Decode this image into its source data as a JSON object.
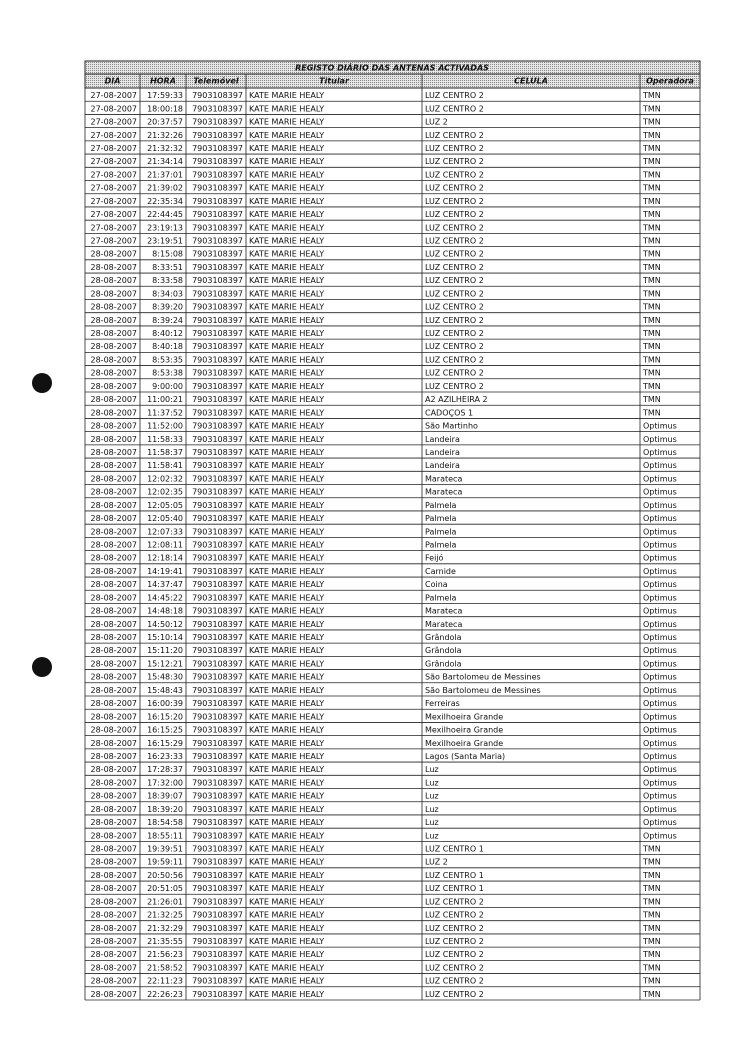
{
  "table": {
    "title": "REGISTO DIÁRIO DAS ANTENAS ACTIVADAS",
    "header": [
      "DIA",
      "HORA",
      "Telemóvel",
      "Titular",
      "CELULA",
      "Operadora"
    ],
    "rows": [
      [
        "27-08-2007",
        "17:59:33",
        "7903108397",
        "KATE MARIE HEALY",
        "LUZ CENTRO 2",
        "TMN"
      ],
      [
        "27-08-2007",
        "18:00:18",
        "7903108397",
        "KATE MARIE HEALY",
        "LUZ CENTRO 2",
        "TMN"
      ],
      [
        "27-08-2007",
        "20:37:57",
        "7903108397",
        "KATE MARIE HEALY",
        "LUZ 2",
        "TMN"
      ],
      [
        "27-08-2007",
        "21:32:26",
        "7903108397",
        "KATE MARIE HEALY",
        "LUZ CENTRO 2",
        "TMN"
      ],
      [
        "27-08-2007",
        "21:32:32",
        "7903108397",
        "KATE MARIE HEALY",
        "LUZ CENTRO 2",
        "TMN"
      ],
      [
        "27-08-2007",
        "21:34:14",
        "7903108397",
        "KATE MARIE HEALY",
        "LUZ CENTRO 2",
        "TMN"
      ],
      [
        "27-08-2007",
        "21:37:01",
        "7903108397",
        "KATE MARIE HEALY",
        "LUZ CENTRO 2",
        "TMN"
      ],
      [
        "27-08-2007",
        "21:39:02",
        "7903108397",
        "KATE MARIE HEALY",
        "LUZ CENTRO 2",
        "TMN"
      ],
      [
        "27-08-2007",
        "22:35:34",
        "7903108397",
        "KATE MARIE HEALY",
        "LUZ CENTRO 2",
        "TMN"
      ],
      [
        "27-08-2007",
        "22:44:45",
        "7903108397",
        "KATE MARIE HEALY",
        "LUZ CENTRO 2",
        "TMN"
      ],
      [
        "27-08-2007",
        "23:19:13",
        "7903108397",
        "KATE MARIE HEALY",
        "LUZ CENTRO 2",
        "TMN"
      ],
      [
        "27-08-2007",
        "23:19:51",
        "7903108397",
        "KATE MARIE HEALY",
        "LUZ CENTRO 2",
        "TMN"
      ],
      [
        "28-08-2007",
        "8:15:08",
        "7903108397",
        "KATE MARIE HEALY",
        "LUZ CENTRO 2",
        "TMN"
      ],
      [
        "28-08-2007",
        "8:33:51",
        "7903108397",
        "KATE MARIE HEALY",
        "LUZ CENTRO 2",
        "TMN"
      ],
      [
        "28-08-2007",
        "8:33:58",
        "7903108397",
        "KATE MARIE HEALY",
        "LUZ CENTRO 2",
        "TMN"
      ],
      [
        "28-08-2007",
        "8:34:03",
        "7903108397",
        "KATE MARIE HEALY",
        "LUZ CENTRO 2",
        "TMN"
      ],
      [
        "28-08-2007",
        "8:39:20",
        "7903108397",
        "KATE MARIE HEALY",
        "LUZ CENTRO 2",
        "TMN"
      ],
      [
        "28-08-2007",
        "8:39:24",
        "7903108397",
        "KATE MARIE HEALY",
        "LUZ CENTRO 2",
        "TMN"
      ],
      [
        "28-08-2007",
        "8:40:12",
        "7903108397",
        "KATE MARIE HEALY",
        "LUZ CENTRO 2",
        "TMN"
      ],
      [
        "28-08-2007",
        "8:40:18",
        "7903108397",
        "KATE MARIE HEALY",
        "LUZ CENTRO 2",
        "TMN"
      ],
      [
        "28-08-2007",
        "8:53:35",
        "7903108397",
        "KATE MARIE HEALY",
        "LUZ CENTRO 2",
        "TMN"
      ],
      [
        "28-08-2007",
        "8:53:38",
        "7903108397",
        "KATE MARIE HEALY",
        "LUZ CENTRO 2",
        "TMN"
      ],
      [
        "28-08-2007",
        "9:00:00",
        "7903108397",
        "KATE MARIE HEALY",
        "LUZ CENTRO 2",
        "TMN"
      ],
      [
        "28-08-2007",
        "11:00:21",
        "7903108397",
        "KATE MARIE HEALY",
        "A2 AZILHEIRA 2",
        "TMN"
      ],
      [
        "28-08-2007",
        "11:37:52",
        "7903108397",
        "KATE MARIE HEALY",
        "CADOÇOS 1",
        "TMN"
      ],
      [
        "28-08-2007",
        "11:52:00",
        "7903108397",
        "KATE MARIE HEALY",
        "São Martinho",
        "Optimus"
      ],
      [
        "28-08-2007",
        "11:58:33",
        "7903108397",
        "KATE MARIE HEALY",
        "Landeira",
        "Optimus"
      ],
      [
        "28-08-2007",
        "11:58:37",
        "7903108397",
        "KATE MARIE HEALY",
        "Landeira",
        "Optimus"
      ],
      [
        "28-08-2007",
        "11:58:41",
        "7903108397",
        "KATE MARIE HEALY",
        "Landeira",
        "Optimus"
      ],
      [
        "28-08-2007",
        "12:02:32",
        "7903108397",
        "KATE MARIE HEALY",
        "Marateca",
        "Optimus"
      ],
      [
        "28-08-2007",
        "12:02:35",
        "7903108397",
        "KATE MARIE HEALY",
        "Marateca",
        "Optimus"
      ],
      [
        "28-08-2007",
        "12:05:05",
        "7903108397",
        "KATE MARIE HEALY",
        "Palmela",
        "Optimus"
      ],
      [
        "28-08-2007",
        "12:05:40",
        "7903108397",
        "KATE MARIE HEALY",
        "Palmela",
        "Optimus"
      ],
      [
        "28-08-2007",
        "12:07:33",
        "7903108397",
        "KATE MARIE HEALY",
        "Palmela",
        "Optimus"
      ],
      [
        "28-08-2007",
        "12:08:11",
        "7903108397",
        "KATE MARIE HEALY",
        "Palmela",
        "Optimus"
      ],
      [
        "28-08-2007",
        "12:18:14",
        "7903108397",
        "KATE MARIE HEALY",
        "Feijó",
        "Optimus"
      ],
      [
        "28-08-2007",
        "14:19:41",
        "7903108397",
        "KATE MARIE HEALY",
        "Carnide",
        "Optimus"
      ],
      [
        "28-08-2007",
        "14:37:47",
        "7903108397",
        "KATE MARIE HEALY",
        "Coina",
        "Optimus"
      ],
      [
        "28-08-2007",
        "14:45:22",
        "7903108397",
        "KATE MARIE HEALY",
        "Palmela",
        "Optimus"
      ],
      [
        "28-08-2007",
        "14:48:18",
        "7903108397",
        "KATE MARIE HEALY",
        "Marateca",
        "Optimus"
      ],
      [
        "28-08-2007",
        "14:50:12",
        "7903108397",
        "KATE MARIE HEALY",
        "Marateca",
        "Optimus"
      ],
      [
        "28-08-2007",
        "15:10:14",
        "7903108397",
        "KATE MARIE HEALY",
        "Grândola",
        "Optimus"
      ],
      [
        "28-08-2007",
        "15:11:20",
        "7903108397",
        "KATE MARIE HEALY",
        "Grândola",
        "Optimus"
      ],
      [
        "28-08-2007",
        "15:12:21",
        "7903108397",
        "KATE MARIE HEALY",
        "Grândola",
        "Optimus"
      ],
      [
        "28-08-2007",
        "15:48:30",
        "7903108397",
        "KATE MARIE HEALY",
        "São Bartolomeu de Messines",
        "Optimus"
      ],
      [
        "28-08-2007",
        "15:48:43",
        "7903108397",
        "KATE MARIE HEALY",
        "São Bartolomeu de Messines",
        "Optimus"
      ],
      [
        "28-08-2007",
        "16:00:39",
        "7903108397",
        "KATE MARIE HEALY",
        "Ferreiras",
        "Optimus"
      ],
      [
        "28-08-2007",
        "16:15:20",
        "7903108397",
        "KATE MARIE HEALY",
        "Mexilhoeira Grande",
        "Optimus"
      ],
      [
        "28-08-2007",
        "16:15:25",
        "7903108397",
        "KATE MARIE HEALY",
        "Mexilhoeira Grande",
        "Optimus"
      ],
      [
        "28-08-2007",
        "16:15:29",
        "7903108397",
        "KATE MARIE HEALY",
        "Mexilhoeira Grande",
        "Optimus"
      ],
      [
        "28-08-2007",
        "16:23:33",
        "7903108397",
        "KATE MARIE HEALY",
        "Lagos (Santa Maria)",
        "Optimus"
      ],
      [
        "28-08-2007",
        "17:28:37",
        "7903108397",
        "KATE MARIE HEALY",
        "Luz",
        "Optimus"
      ],
      [
        "28-08-2007",
        "17:32:00",
        "7903108397",
        "KATE MARIE HEALY",
        "Luz",
        "Optimus"
      ],
      [
        "28-08-2007",
        "18:39:07",
        "7903108397",
        "KATE MARIE HEALY",
        "Luz",
        "Optimus"
      ],
      [
        "28-08-2007",
        "18:39:20",
        "7903108397",
        "KATE MARIE HEALY",
        "Luz",
        "Optimus"
      ],
      [
        "28-08-2007",
        "18:54:58",
        "7903108397",
        "KATE MARIE HEALY",
        "Luz",
        "Optimus"
      ],
      [
        "28-08-2007",
        "18:55:11",
        "7903108397",
        "KATE MARIE HEALY",
        "Luz",
        "Optimus"
      ],
      [
        "28-08-2007",
        "19:39:51",
        "7903108397",
        "KATE MARIE HEALY",
        "LUZ CENTRO 1",
        "TMN"
      ],
      [
        "28-08-2007",
        "19:59:11",
        "7903108397",
        "KATE MARIE HEALY",
        "LUZ 2",
        "TMN"
      ],
      [
        "28-08-2007",
        "20:50:56",
        "7903108397",
        "KATE MARIE HEALY",
        "LUZ CENTRO 1",
        "TMN"
      ],
      [
        "28-08-2007",
        "20:51:05",
        "7903108397",
        "KATE MARIE HEALY",
        "LUZ CENTRO 1",
        "TMN"
      ],
      [
        "28-08-2007",
        "21:26:01",
        "7903108397",
        "KATE MARIE HEALY",
        "LUZ CENTRO 2",
        "TMN"
      ],
      [
        "28-08-2007",
        "21:32:25",
        "7903108397",
        "KATE MARIE HEALY",
        "LUZ CENTRO 2",
        "TMN"
      ],
      [
        "28-08-2007",
        "21:32:29",
        "7903108397",
        "KATE MARIE HEALY",
        "LUZ CENTRO 2",
        "TMN"
      ],
      [
        "28-08-2007",
        "21:35:55",
        "7903108397",
        "KATE MARIE HEALY",
        "LUZ CENTRO 2",
        "TMN"
      ],
      [
        "28-08-2007",
        "21:56:23",
        "7903108397",
        "KATE MARIE HEALY",
        "LUZ CENTRO 2",
        "TMN"
      ],
      [
        "28-08-2007",
        "21:58:52",
        "7903108397",
        "KATE MARIE HEALY",
        "LUZ CENTRO 2",
        "TMN"
      ],
      [
        "28-08-2007",
        "22:11:23",
        "7903108397",
        "KATE MARIE HEALY",
        "LUZ CENTRO 2",
        "TMN"
      ],
      [
        "28-08-2007",
        "22:26:23",
        "7903108397",
        "KATE MARIE HEALY",
        "LUZ CENTRO 2",
        "TMN"
      ]
    ]
  }
}
